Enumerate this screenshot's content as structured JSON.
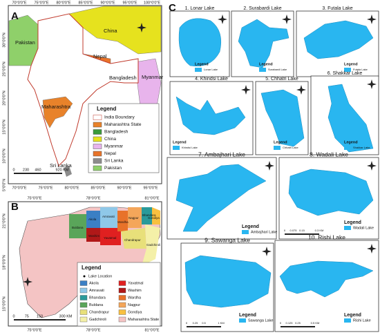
{
  "panel_a": {
    "label": "A",
    "places": [
      "Pakistan",
      "China",
      "Nepal",
      "Bangladesh",
      "Myanmar",
      "Maharashtra",
      "Sri Lanka"
    ],
    "legend": {
      "title": "Legend",
      "items": [
        {
          "name": "India Boundary",
          "color": "#ffffff"
        },
        {
          "name": "Maharashtra State",
          "color": "#e8822a"
        },
        {
          "name": "Bangladesh",
          "color": "#3a9a3a"
        },
        {
          "name": "China",
          "color": "#e6e21e"
        },
        {
          "name": "Myanmar",
          "color": "#e8b4ec"
        },
        {
          "name": "Nepal",
          "color": "#e8742a"
        },
        {
          "name": "Sri Lanka",
          "color": "#8c8c8c"
        },
        {
          "name": "Pakistan",
          "color": "#8fd06a"
        }
      ]
    },
    "lon_top": [
      "70°0'0\"E",
      "75°0'0\"E",
      "80°0'0\"E",
      "85°0'0\"E",
      "90°0'0\"E",
      "95°0'0\"E",
      "100°0'0\"E"
    ],
    "lon_bottom": [
      "70°0'0\"E",
      "75°0'0\"E",
      "80°0'0\"E",
      "85°0'0\"E",
      "90°0'0\"E",
      "95°0'0\"E"
    ],
    "lat": [
      "30°0'0\"N",
      "25°0'0\"N",
      "20°0'0\"N",
      "15°0'0\"N",
      "10°0'0\"N",
      "5°0'0\"N"
    ],
    "scale": [
      "0",
      "230",
      "460",
      "920 KM"
    ]
  },
  "panel_b": {
    "label": "B",
    "districts": [
      "Buldana",
      "Akola",
      "Washim",
      "Amravati",
      "Yavatmal",
      "Wardha",
      "Nagpur",
      "Bhandara",
      "Gondiya",
      "Chandrapur",
      "Gadchiroli"
    ],
    "legend": {
      "title": "Legend",
      "marker": "Lake Location",
      "items": [
        {
          "name": "Akola",
          "color": "#3b7fc4"
        },
        {
          "name": "Amravati",
          "color": "#8fc8e8"
        },
        {
          "name": "Bhandara",
          "color": "#2a9a9a"
        },
        {
          "name": "Buldana",
          "color": "#5aa55a"
        },
        {
          "name": "Chandrapur",
          "color": "#e8e07a"
        },
        {
          "name": "Gadchiroli",
          "color": "#f4f0a8"
        },
        {
          "name": "Yavatmal",
          "color": "#e02020"
        },
        {
          "name": "Washim",
          "color": "#b01818"
        },
        {
          "name": "Wardha",
          "color": "#e8722a"
        },
        {
          "name": "Nagpur",
          "color": "#f4a65a"
        },
        {
          "name": "Gondiya",
          "color": "#f8c040"
        },
        {
          "name": "Maharashtra State",
          "color": "#f4c4c4"
        }
      ]
    },
    "lon": [
      "75°0'0\"E",
      "78°0'0\"E",
      "81°0'0\"E"
    ],
    "lat": [
      "21°0'0\"N",
      "18°0'0\"N",
      "15°0'0\"N"
    ],
    "scale": [
      "0",
      "75",
      "150",
      "300 KM"
    ]
  },
  "panel_c": {
    "label": "C",
    "lakes": [
      {
        "title": "1. Lonar Lake",
        "legend": "Legend",
        "item": "Lonar Lake"
      },
      {
        "title": "2. Surabardi Lake",
        "legend": "Legend",
        "item": "Surabardi Lake"
      },
      {
        "title": "3. Futala Lake",
        "legend": "Legend",
        "item": "Futala Lake"
      },
      {
        "title": "4. Khindsi Lake",
        "legend": "Legend",
        "item": "Khindsi Lake"
      },
      {
        "title": "5. Chhatri Lake",
        "legend": "Legend",
        "item": "Chhatri Lake"
      },
      {
        "title": "6. Shakkar Lake",
        "legend": "Legend",
        "item": "Shakkar Lake"
      },
      {
        "title": "7. Ambajhari Lake",
        "legend": "Legend",
        "item": "Ambajhari Lake"
      },
      {
        "title": "8. Wadali Lake",
        "legend": "Legend",
        "item": "Wadali Lake",
        "scale": [
          "0",
          "0.075",
          "0.15",
          "0.3 KM"
        ]
      },
      {
        "title": "9. Sawanga Lake",
        "legend": "Legend",
        "item": "Sawanga Lake",
        "scale": [
          "0",
          "0.25",
          "0.5",
          "1 KM"
        ]
      },
      {
        "title": "10. Rishi Lake",
        "legend": "Legend",
        "item": "Rishi Lake",
        "scale": [
          "0",
          "0.125",
          "0.25",
          "0.5 KM"
        ]
      }
    ]
  }
}
